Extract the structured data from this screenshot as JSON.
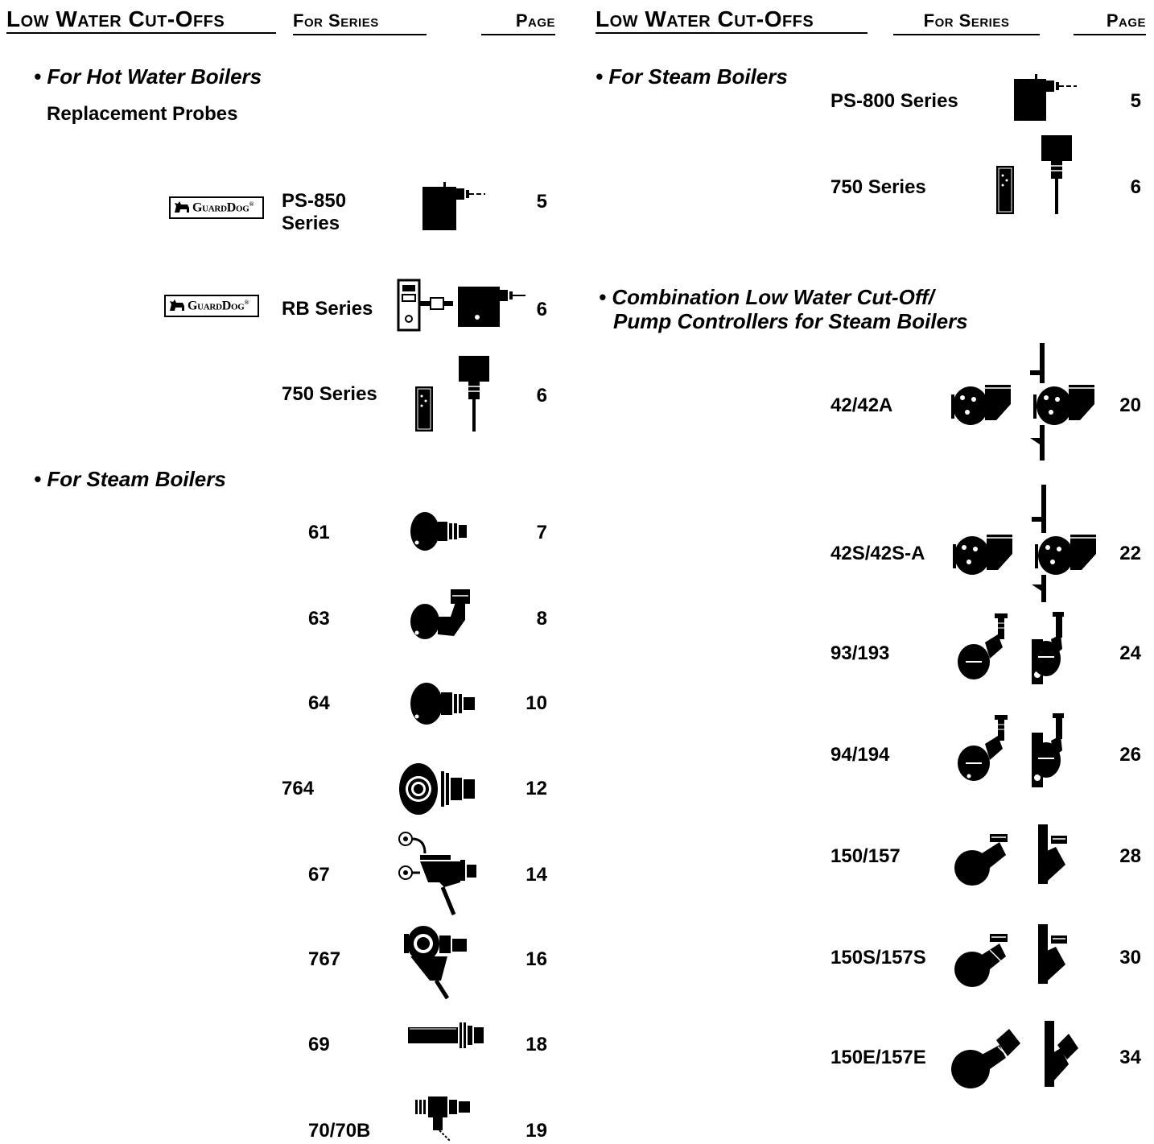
{
  "header": {
    "left": {
      "title": "Low Water Cut-Offs",
      "for_series": "For Series",
      "page": "Page"
    },
    "right": {
      "title": "Low Water Cut-Offs",
      "for_series": "For Series",
      "page": "Page"
    }
  },
  "left_column": {
    "hot_water": {
      "heading": "• For Hot Water Boilers",
      "subheading": "Replacement Probes",
      "items": [
        {
          "series": "PS-850 Series",
          "page": "5",
          "brand": "GuardDog"
        },
        {
          "series": "RB Series",
          "page": "6",
          "brand": "GuardDog"
        },
        {
          "series": "750 Series",
          "page": "6"
        }
      ]
    },
    "steam": {
      "heading": "• For Steam Boilers",
      "items": [
        {
          "series": "61",
          "page": "7"
        },
        {
          "series": "63",
          "page": "8"
        },
        {
          "series": "64",
          "page": "10"
        },
        {
          "series": "764",
          "page": "12"
        },
        {
          "series": "67",
          "page": "14"
        },
        {
          "series": "767",
          "page": "16"
        },
        {
          "series": "69",
          "page": "18"
        },
        {
          "series": "70/70B",
          "page": "19"
        }
      ]
    }
  },
  "right_column": {
    "steam": {
      "heading": "• For Steam Boilers",
      "items": [
        {
          "series": "PS-800 Series",
          "page": "5"
        },
        {
          "series": "750 Series",
          "page": "6"
        }
      ]
    },
    "combination": {
      "heading_line1": "• Combination Low Water Cut-Off/",
      "heading_line2": "Pump Controllers for Steam Boilers",
      "items": [
        {
          "series": "42/42A",
          "page": "20"
        },
        {
          "series": "42S/42S-A",
          "page": "22"
        },
        {
          "series": "93/193",
          "page": "24"
        },
        {
          "series": "94/194",
          "page": "26"
        },
        {
          "series": "150/157",
          "page": "28"
        },
        {
          "series": "150S/157S",
          "page": "30"
        },
        {
          "series": "150E/157E",
          "page": "34"
        }
      ]
    }
  },
  "brand_logo": {
    "text": "GuardDog",
    "mark": "®"
  },
  "icons": [
    "ps-probe-icon",
    "rb-probe-icon",
    "750-probe-icon",
    "float-control-icon",
    "combination-control-icon"
  ]
}
